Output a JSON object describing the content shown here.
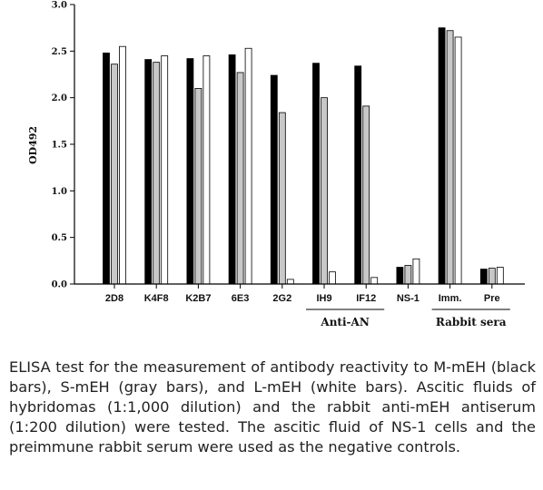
{
  "chart_data": {
    "type": "bar",
    "ylabel": "OD492",
    "ylim": [
      0,
      3.0
    ],
    "yticks": [
      "0.0",
      "0.5",
      "1.0",
      "1.5",
      "2.0",
      "2.5",
      "3.0"
    ],
    "categories": [
      "2D8",
      "K4F8",
      "K2B7",
      "6E3",
      "2G2",
      "IH9",
      "IF12",
      "NS-1",
      "Imm.",
      "Pre"
    ],
    "series": [
      {
        "values": [
          2.48,
          2.41,
          2.42,
          2.46,
          2.24,
          2.37,
          2.34,
          0.18,
          2.75,
          0.16
        ],
        "color": "#000000"
      },
      {
        "values": [
          2.36,
          2.38,
          2.1,
          2.27,
          1.84,
          2.0,
          1.91,
          0.2,
          2.72,
          0.17
        ],
        "color": "#c8c8c8"
      },
      {
        "values": [
          2.55,
          2.45,
          2.45,
          2.53,
          0.05,
          0.13,
          0.07,
          0.27,
          2.65,
          0.18
        ],
        "color": "#ffffff"
      }
    ],
    "groups": [
      {
        "label": "Anti-AN",
        "categories": [
          "IH9",
          "IF12"
        ]
      },
      {
        "label": "Rabbit sera",
        "categories": [
          "Imm.",
          "Pre"
        ]
      }
    ],
    "grid": false
  },
  "caption": "ELISA test for the measurement of antibody reactivity to M-mEH (black bars), S-mEH (gray bars), and L-mEH (white bars). Ascitic fluids of hybridomas (1:1,000 dilution) and the rabbit anti-mEH antiserum (1:200 dilution) were tested. The ascitic fluid of NS-1 cells and the preimmune rabbit serum were used as the negative controls."
}
